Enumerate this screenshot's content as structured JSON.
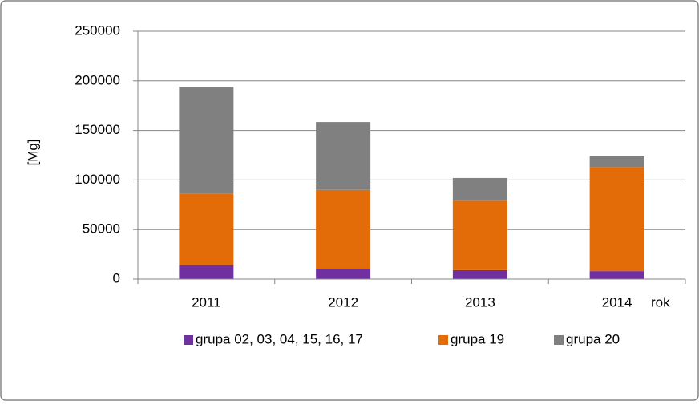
{
  "chart_data": {
    "type": "stacked_bar",
    "y_axis_label": "[Mg]",
    "x_axis_label": "rok",
    "categories": [
      "2011",
      "2012",
      "2013",
      "2014"
    ],
    "series": [
      {
        "name": "grupa 02, 03, 04, 15, 16, 17",
        "color": "#7030a0",
        "values": [
          14000,
          10000,
          9000,
          8000
        ]
      },
      {
        "name": "grupa 19",
        "color": "#e36c09",
        "values": [
          72000,
          80000,
          70000,
          105000
        ]
      },
      {
        "name": "grupa 20",
        "color": "#808080",
        "values": [
          108000,
          68500,
          23000,
          11000
        ]
      }
    ],
    "ylim": [
      0,
      250000
    ],
    "yticks": [
      0,
      50000,
      100000,
      150000,
      200000,
      250000
    ],
    "grid": true,
    "legend": "bottom"
  }
}
